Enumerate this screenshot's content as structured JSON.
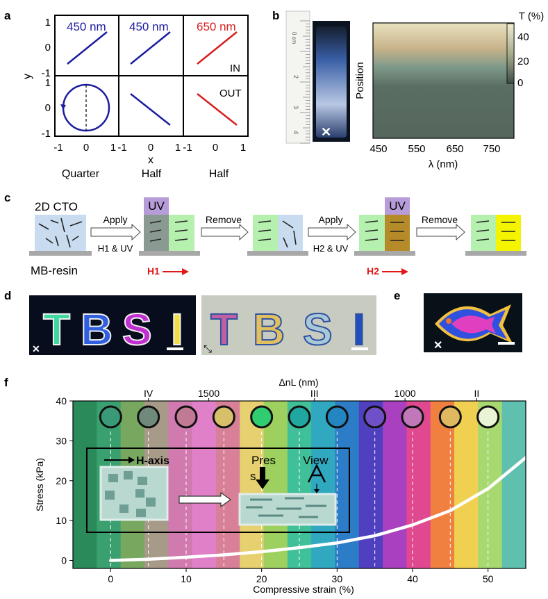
{
  "panel_labels": {
    "a": "a",
    "b": "b",
    "c": "c",
    "d": "d",
    "e": "e",
    "f": "f"
  },
  "panel_a": {
    "axis_x_label": "x",
    "axis_y_label": "y",
    "row_labels": [
      "IN",
      "OUT"
    ],
    "column_wavelengths": [
      "450 nm",
      "450 nm",
      "650 nm"
    ],
    "column_plates": [
      "Quarter",
      "Half",
      "Half"
    ],
    "y_ticks": [
      "1",
      "0",
      "-1"
    ],
    "x_ticks": [
      "-1",
      "0",
      "1"
    ],
    "colors": {
      "blue": "#1c1ca0",
      "red": "#d81e1e"
    }
  },
  "panel_b": {
    "ruler_unit": "0 cm",
    "ruler_numbers": [
      "1",
      "2",
      "3",
      "4"
    ],
    "cross_mark": "✕",
    "map_x_label": "λ (nm)",
    "map_y_label": "Position",
    "x_ticks": [
      "450",
      "550",
      "650",
      "750"
    ],
    "colorbar_title": "T (%)",
    "colorbar_ticks": [
      "40",
      "20",
      "0"
    ]
  },
  "panel_c": {
    "material_label": "2D CTO",
    "substrate_label": "MB-resin",
    "uv_label": "UV",
    "step_arrows": [
      "Apply",
      "Remove",
      "Apply",
      "Remove"
    ],
    "step_conditions": [
      "H1 & UV",
      "H2 & UV"
    ],
    "field_labels": [
      "H1",
      "H2"
    ],
    "colors": {
      "blue_box": "#c9dcef",
      "green_box": "#b6f0ae",
      "yellow_box": "#f4f400",
      "gold_box": "#b58a28",
      "uv": "#a98bd1",
      "field": "#e01818"
    }
  },
  "panel_d": {
    "letters": [
      "T",
      "B",
      "S",
      "I"
    ],
    "left_polarizer": "✕",
    "right_polarizer": "⤡"
  },
  "panel_e": {
    "polarizer": "✕"
  },
  "chart_data": {
    "type": "line",
    "title": "",
    "xlabel": "Compressive strain (%)",
    "ylabel": "Stress (kPa)",
    "top_axis_label": "ΔnL (nm)",
    "xlim": [
      -5,
      55
    ],
    "ylim": [
      -2,
      40
    ],
    "x_ticks": [
      0,
      10,
      20,
      30,
      40,
      50
    ],
    "y_ticks": [
      0,
      10,
      20,
      30,
      40
    ],
    "top_ticks": [
      {
        "label": "IV",
        "x": 5
      },
      {
        "label": "1500",
        "x": 13
      },
      {
        "label": "III",
        "x": 27
      },
      {
        "label": "1000",
        "x": 39
      },
      {
        "label": "II",
        "x": 48.5
      }
    ],
    "series": [
      {
        "name": "stress-strain",
        "color": "#ffffff",
        "x": [
          0,
          5,
          10,
          15,
          20,
          25,
          30,
          35,
          40,
          45,
          50,
          55
        ],
        "y": [
          0,
          0.3,
          0.8,
          1.4,
          2.2,
          3.2,
          4.4,
          6.2,
          8.9,
          12.5,
          18.0,
          25.8
        ]
      }
    ],
    "strain_markers": [
      0,
      5,
      10,
      15,
      20,
      25,
      30,
      35,
      40,
      45,
      50
    ],
    "marker_colors": [
      "#3a9a78",
      "#6f8a7a",
      "#c07a94",
      "#d8c06a",
      "#30cc70",
      "#20a8a0",
      "#2486c0",
      "#7050c8",
      "#c078b8",
      "#e0b860",
      "#e8f4d4"
    ],
    "background_colors": [
      "#2a8a5a",
      "#3aa070",
      "#78a860",
      "#a89a88",
      "#d07ab0",
      "#e080c8",
      "#d88098",
      "#e6d070",
      "#9ed060",
      "#40c098",
      "#30a8c0",
      "#2c7cc8",
      "#5040c0",
      "#a840c0",
      "#e04890",
      "#f08040",
      "#f0d050",
      "#a8d870",
      "#60c0b0"
    ],
    "inset": {
      "axis_label": "H-axis",
      "press_label_a": "Pres",
      "press_label_b": "s",
      "view_label": "View"
    }
  }
}
